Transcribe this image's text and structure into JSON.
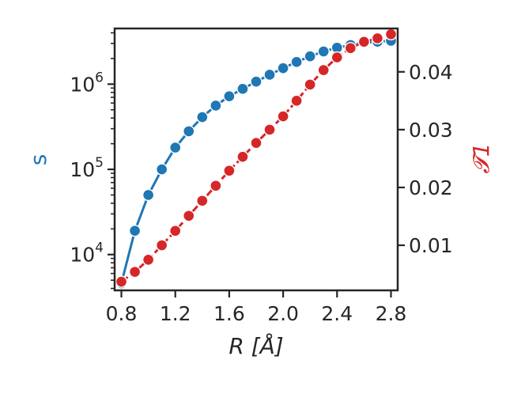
{
  "chart_data": {
    "type": "line",
    "xlabel": "R [Å]",
    "ylabel_left": "s",
    "ylabel_right": "𝓣1",
    "xlim": [
      0.75,
      2.85
    ],
    "ylim_left": [
      3800,
      4500000
    ],
    "yscale_left": "log",
    "ylim_right": [
      0.0022,
      0.0475
    ],
    "xticks": [
      0.8,
      1.2,
      1.6,
      2.0,
      2.4,
      2.8
    ],
    "xtick_labels": [
      "0.8",
      "1.2",
      "1.6",
      "2.0",
      "2.4",
      "2.8"
    ],
    "yticks_left": [
      10000,
      100000,
      1000000
    ],
    "ytick_labels_left": [
      {
        "base": "10",
        "exp": "4"
      },
      {
        "base": "10",
        "exp": "5"
      },
      {
        "base": "10",
        "exp": "6"
      }
    ],
    "yticks_right": [
      0.01,
      0.02,
      0.03,
      0.04
    ],
    "ytick_labels_right": [
      "0.01",
      "0.02",
      "0.03",
      "0.04"
    ],
    "grid": false,
    "legend": "none",
    "x": [
      0.8,
      0.9,
      1.0,
      1.1,
      1.2,
      1.3,
      1.4,
      1.5,
      1.6,
      1.7,
      1.8,
      1.9,
      2.0,
      2.1,
      2.2,
      2.3,
      2.4,
      2.5,
      2.6,
      2.7,
      2.8
    ],
    "series": [
      {
        "axis": "left",
        "color": "#1f77b4",
        "linestyle": "solid",
        "values": [
          4600,
          19000,
          50000,
          100000,
          180000,
          280000,
          410000,
          560000,
          720000,
          880000,
          1070000,
          1290000,
          1540000,
          1820000,
          2120000,
          2420000,
          2680000,
          2880000,
          3040000,
          3150000,
          3230000
        ]
      },
      {
        "axis": "right",
        "color": "#d62728",
        "linestyle": "dashed",
        "values": [
          0.0037,
          0.0054,
          0.0075,
          0.01,
          0.0125,
          0.0151,
          0.0177,
          0.0203,
          0.0229,
          0.0253,
          0.0277,
          0.03,
          0.0323,
          0.035,
          0.0378,
          0.0403,
          0.0425,
          0.0441,
          0.0452,
          0.0458,
          0.0465
        ]
      }
    ],
    "colors": {
      "left_axis_label": "#1f77b4",
      "right_axis_label": "#d62728",
      "axis": "#262626",
      "marker_edge": "#ffffff"
    }
  }
}
